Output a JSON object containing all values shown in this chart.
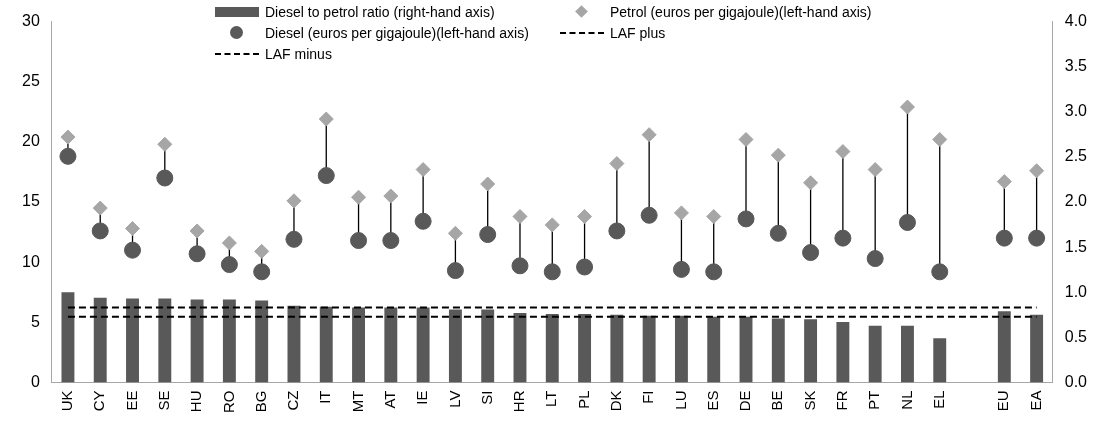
{
  "chart_data": {
    "type": "bar",
    "categories": [
      "UK",
      "CY",
      "EE",
      "SE",
      "HU",
      "RO",
      "BG",
      "CZ",
      "IT",
      "MT",
      "AT",
      "IE",
      "LV",
      "SI",
      "HR",
      "LT",
      "PL",
      "DK",
      "FI",
      "LU",
      "ES",
      "DE",
      "BE",
      "SK",
      "FR",
      "PT",
      "NL",
      "EL",
      null,
      "EU",
      "EA"
    ],
    "series": [
      {
        "name": "Diesel to petrol ratio (right-hand axis)",
        "axis": "y2",
        "color": "#595959",
        "values": [
          1.0,
          0.94,
          0.93,
          0.93,
          0.92,
          0.92,
          0.91,
          0.85,
          0.84,
          0.83,
          0.83,
          0.83,
          0.81,
          0.81,
          0.77,
          0.76,
          0.76,
          0.75,
          0.74,
          0.74,
          0.73,
          0.73,
          0.71,
          0.7,
          0.67,
          0.63,
          0.63,
          0.49,
          null,
          0.79,
          0.75
        ]
      },
      {
        "name": "Petrol (euros per gigajoule)(left-hand axis)",
        "type": "scatter",
        "marker": "diamond",
        "color": "#a6a6a6",
        "values": [
          20.4,
          14.5,
          12.8,
          19.8,
          12.6,
          11.6,
          10.9,
          15.1,
          21.9,
          15.4,
          15.5,
          17.7,
          12.4,
          16.5,
          13.8,
          13.1,
          13.8,
          18.2,
          20.6,
          14.1,
          13.8,
          20.2,
          18.9,
          16.6,
          19.2,
          17.7,
          22.9,
          20.2,
          null,
          16.7,
          17.6
        ]
      },
      {
        "name": "Diesel (euros per gigajoule)(left-hand axis)",
        "type": "scatter",
        "marker": "circle",
        "color": "#595959",
        "values": [
          18.8,
          12.6,
          11.0,
          17.0,
          10.7,
          9.8,
          9.2,
          11.9,
          17.2,
          11.8,
          11.8,
          13.4,
          9.3,
          12.3,
          9.7,
          9.2,
          9.6,
          12.6,
          13.9,
          9.4,
          9.2,
          13.6,
          12.4,
          10.8,
          12.0,
          10.3,
          13.3,
          9.2,
          null,
          12.0,
          12.0
        ]
      }
    ],
    "ref_lines": [
      {
        "axis": "y2",
        "value": 0.83,
        "label": "LAF plus",
        "color": "#000000",
        "line_style": "dashed"
      },
      {
        "axis": "y2",
        "value": 0.73,
        "label": "LAF minus",
        "color": "#000000",
        "line_style": "dashed"
      }
    ],
    "ylim": [
      0,
      30
    ],
    "yticks": [
      0,
      5,
      10,
      15,
      20,
      25,
      30
    ],
    "y2lim": [
      0,
      4
    ],
    "y2ticks": [
      {
        "value": 0,
        "label": "0.0"
      },
      {
        "value": 0.5,
        "label": "0.5"
      },
      {
        "value": 1,
        "label": "1.0"
      },
      {
        "value": 1.5,
        "label": "1.5"
      },
      {
        "value": 2,
        "label": "2.0"
      },
      {
        "value": 2.5,
        "label": "2.5"
      },
      {
        "value": 3,
        "label": "3.0"
      },
      {
        "value": 3.5,
        "label": "3.5"
      },
      {
        "value": 4,
        "label": "4.0"
      }
    ],
    "grid": false,
    "legend": "top"
  }
}
